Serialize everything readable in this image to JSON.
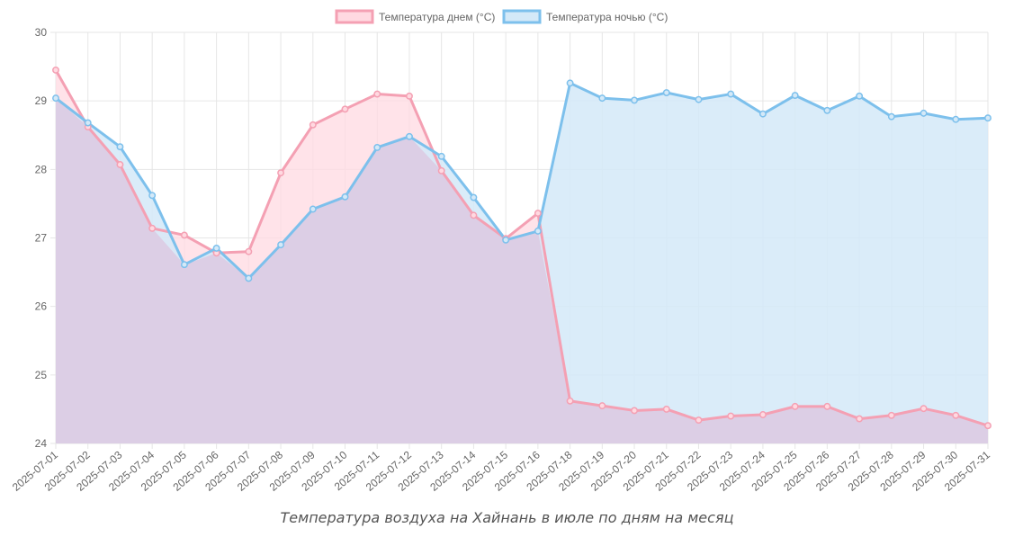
{
  "caption": "Температура воздуха на Хайнань в июле по дням на месяц",
  "colors": {
    "day_line": "#f4a0b3",
    "day_fill": "#ffd9e1",
    "night_line": "#7dc0ec",
    "night_fill": "#d4e9f8",
    "grid": "#e6e6e6",
    "text": "#666666"
  },
  "chart_data": {
    "type": "area",
    "x": [
      "2025-07-01",
      "2025-07-02",
      "2025-07-03",
      "2025-07-04",
      "2025-07-05",
      "2025-07-06",
      "2025-07-07",
      "2025-07-08",
      "2025-07-09",
      "2025-07-10",
      "2025-07-11",
      "2025-07-12",
      "2025-07-13",
      "2025-07-14",
      "2025-07-15",
      "2025-07-16",
      "2025-07-18",
      "2025-07-19",
      "2025-07-20",
      "2025-07-21",
      "2025-07-22",
      "2025-07-23",
      "2025-07-24",
      "2025-07-25",
      "2025-07-26",
      "2025-07-27",
      "2025-07-28",
      "2025-07-29",
      "2025-07-30",
      "2025-07-31"
    ],
    "series": [
      {
        "name": "Температура днем (°C)",
        "values": [
          29.45,
          28.62,
          28.07,
          27.14,
          27.04,
          26.78,
          26.8,
          27.95,
          28.65,
          28.88,
          29.1,
          29.07,
          27.98,
          27.33,
          26.99,
          27.36,
          24.62,
          24.55,
          24.48,
          24.5,
          24.34,
          24.4,
          24.42,
          24.54,
          24.54,
          24.36,
          24.41,
          24.51,
          24.41,
          24.26
        ]
      },
      {
        "name": "Температура ночью (°C)",
        "values": [
          29.04,
          28.68,
          28.33,
          27.62,
          26.61,
          26.85,
          26.41,
          26.9,
          27.42,
          27.6,
          28.32,
          28.48,
          28.19,
          27.59,
          26.97,
          27.1,
          29.26,
          29.04,
          29.01,
          29.12,
          29.02,
          29.1,
          28.81,
          29.08,
          28.86,
          29.07,
          28.77,
          28.82,
          28.73,
          28.75
        ]
      }
    ],
    "ylim": [
      24,
      30
    ],
    "yticks": [
      24,
      25,
      26,
      27,
      28,
      29,
      30
    ],
    "grid": true,
    "legend": "top-center"
  }
}
